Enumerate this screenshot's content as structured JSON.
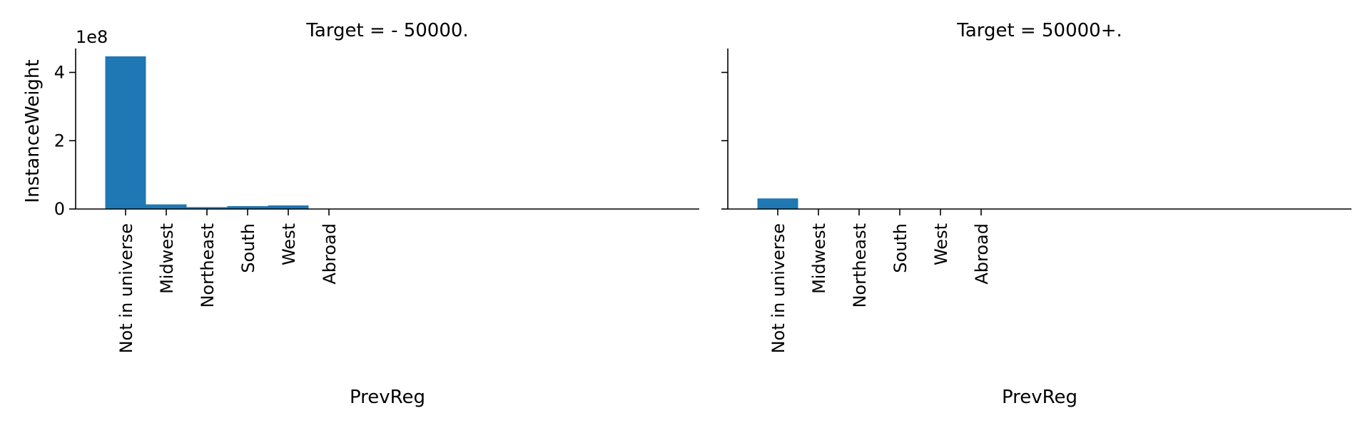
{
  "chart_data": {
    "type": "bar",
    "ylabel": "InstanceWeight",
    "xlabel": "PrevReg",
    "y_offset_label": "1e8",
    "ylim": [
      0,
      4.7
    ],
    "yticks": [
      0,
      2,
      4
    ],
    "bar_color": "#1f77b4",
    "categories": [
      "Not in universe",
      "Midwest",
      "Northeast",
      "South",
      "West",
      "Abroad"
    ],
    "panels": [
      {
        "title": "Target =  - 50000.",
        "values": [
          4.47,
          0.135,
          0.055,
          0.085,
          0.105,
          0.004
        ]
      },
      {
        "title": "Target =  50000+.",
        "values": [
          0.31,
          0.006,
          0.004,
          0.005,
          0.006,
          0.0005
        ]
      }
    ]
  }
}
